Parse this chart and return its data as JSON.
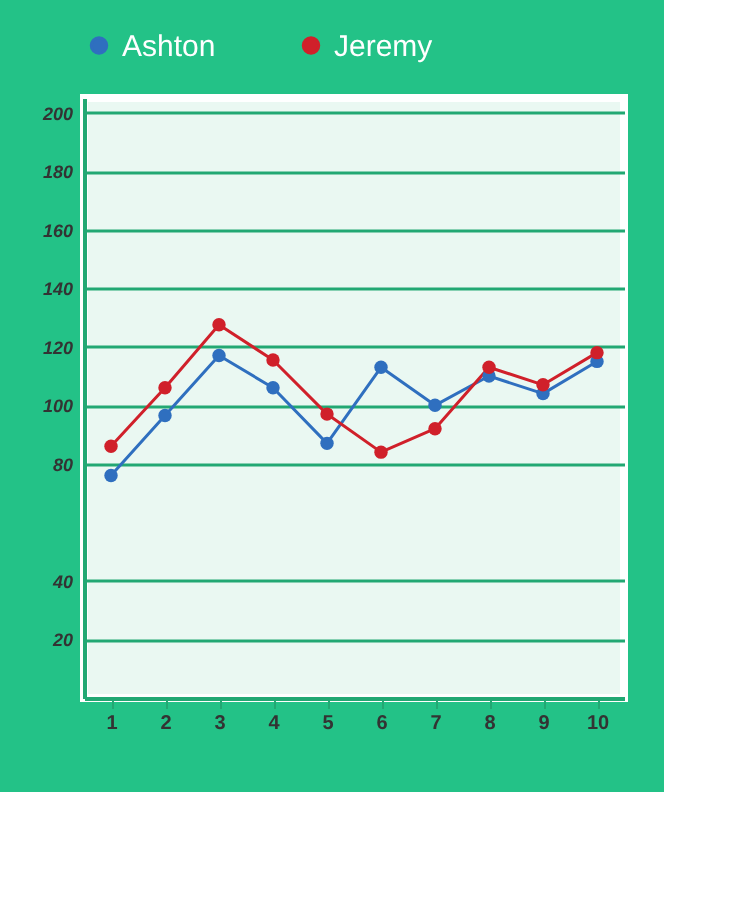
{
  "chart_data": {
    "type": "line",
    "categories": [
      "1",
      "2",
      "3",
      "4",
      "5",
      "6",
      "7",
      "8",
      "9",
      "10"
    ],
    "series": [
      {
        "name": "Ashton",
        "color": "#2f6fbf",
        "values": [
          76,
          96.5,
          117,
          106,
          87,
          113,
          100,
          110,
          104,
          115
        ]
      },
      {
        "name": "Jeremy",
        "color": "#d0202a",
        "values": [
          86,
          106,
          127.5,
          115.5,
          97,
          84,
          92,
          113,
          107,
          118
        ]
      }
    ],
    "ylim": [
      0,
      205
    ],
    "yticks": [
      20,
      40,
      80,
      100,
      120,
      140,
      160,
      180,
      200
    ],
    "grid": "y",
    "legend": "top",
    "marker": "circle",
    "line_style": "solid"
  }
}
